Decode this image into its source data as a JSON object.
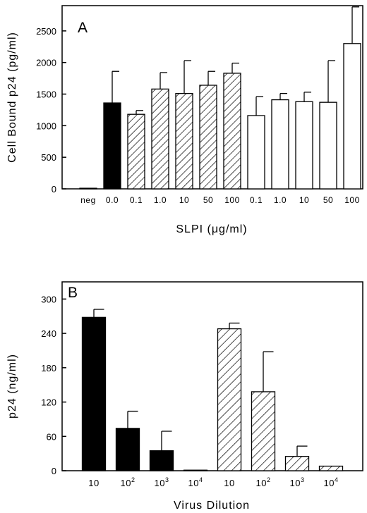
{
  "chart_data": [
    {
      "type": "bar",
      "panel_label": "A",
      "ylabel": "Cell Bound p24 (pg/ml)",
      "xlabel": "SLPI (μg/ml)",
      "ylim": [
        0,
        2900
      ],
      "yticks": [
        0,
        500,
        1000,
        1500,
        2000,
        2500
      ],
      "categories": [
        "neg",
        "0.0",
        "0.1",
        "1.0",
        "10",
        "50",
        "100",
        "0.1",
        "1.0",
        "10",
        "50",
        "100"
      ],
      "values": [
        10,
        1360,
        1180,
        1580,
        1510,
        1640,
        1830,
        1160,
        1410,
        1380,
        1370,
        2300
      ],
      "errors": [
        0,
        500,
        60,
        260,
        520,
        220,
        160,
        300,
        100,
        150,
        660,
        580
      ],
      "fills": [
        "solid",
        "solid",
        "hatch",
        "hatch",
        "hatch",
        "hatch",
        "hatch",
        "open",
        "open",
        "open",
        "open",
        "open"
      ],
      "grid": false
    },
    {
      "type": "bar",
      "panel_label": "B",
      "ylabel": "p24 (ng/ml)",
      "xlabel": "Virus Dilution",
      "ylim": [
        0,
        330
      ],
      "yticks": [
        0,
        60,
        120,
        180,
        240,
        300
      ],
      "categories": [
        {
          "base": "10",
          "exp": ""
        },
        {
          "base": "10",
          "exp": "2"
        },
        {
          "base": "10",
          "exp": "3"
        },
        {
          "base": "10",
          "exp": "4"
        },
        {
          "base": "10",
          "exp": ""
        },
        {
          "base": "10",
          "exp": "2"
        },
        {
          "base": "10",
          "exp": "3"
        },
        {
          "base": "10",
          "exp": "4"
        }
      ],
      "values": [
        268,
        74,
        35,
        1,
        248,
        138,
        25,
        8
      ],
      "errors": [
        14,
        30,
        34,
        0,
        10,
        70,
        18,
        0
      ],
      "fills": [
        "solid",
        "solid",
        "solid",
        "solid",
        "hatch",
        "hatch",
        "hatch",
        "hatch"
      ],
      "grid": false
    }
  ]
}
